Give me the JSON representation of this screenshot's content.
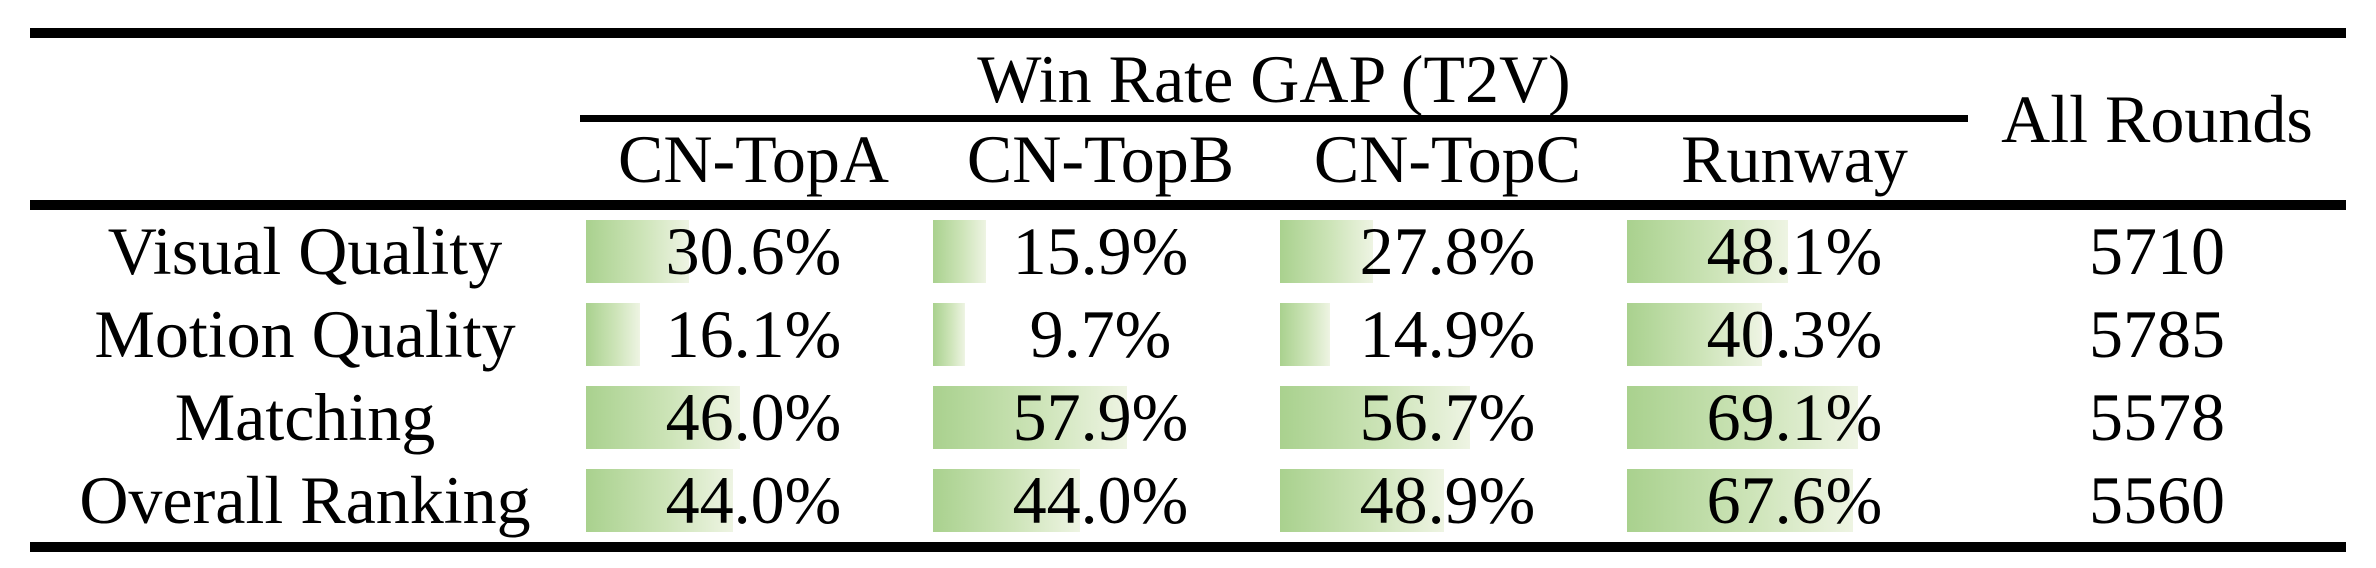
{
  "table": {
    "group_header": "Win Rate GAP (T2V)",
    "all_rounds_header": "All Rounds",
    "columns": [
      "CN-TopA",
      "CN-TopB",
      "CN-TopC",
      "Runway"
    ],
    "rows": [
      {
        "label": "Visual Quality",
        "values": [
          "30.6%",
          "15.9%",
          "27.8%",
          "48.1%"
        ],
        "all_rounds": "5710"
      },
      {
        "label": "Motion Quality",
        "values": [
          "16.1%",
          "9.7%",
          "14.9%",
          "40.3%"
        ],
        "all_rounds": "5785"
      },
      {
        "label": "Matching",
        "values": [
          "46.0%",
          "57.9%",
          "56.7%",
          "69.1%"
        ],
        "all_rounds": "5578"
      },
      {
        "label": "Overall Ranking",
        "values": [
          "44.0%",
          "44.0%",
          "48.9%",
          "67.6%"
        ],
        "all_rounds": "5560"
      }
    ],
    "bar_color": "#a9d18e"
  },
  "chart_data": {
    "type": "table",
    "title": "Win Rate GAP (T2V)",
    "categories": [
      "Visual Quality",
      "Motion Quality",
      "Matching",
      "Overall Ranking"
    ],
    "series": [
      {
        "name": "CN-TopA",
        "values": [
          30.6,
          16.1,
          46.0,
          44.0
        ]
      },
      {
        "name": "CN-TopB",
        "values": [
          15.9,
          9.7,
          57.9,
          44.0
        ]
      },
      {
        "name": "CN-TopC",
        "values": [
          27.8,
          14.9,
          56.7,
          48.9
        ]
      },
      {
        "name": "Runway",
        "values": [
          48.1,
          40.3,
          69.1,
          67.6
        ]
      },
      {
        "name": "All Rounds",
        "values": [
          5710,
          5785,
          5578,
          5560
        ]
      }
    ],
    "layout": {
      "bar_fill_scale": "percent of cell width",
      "unit": "%"
    }
  }
}
